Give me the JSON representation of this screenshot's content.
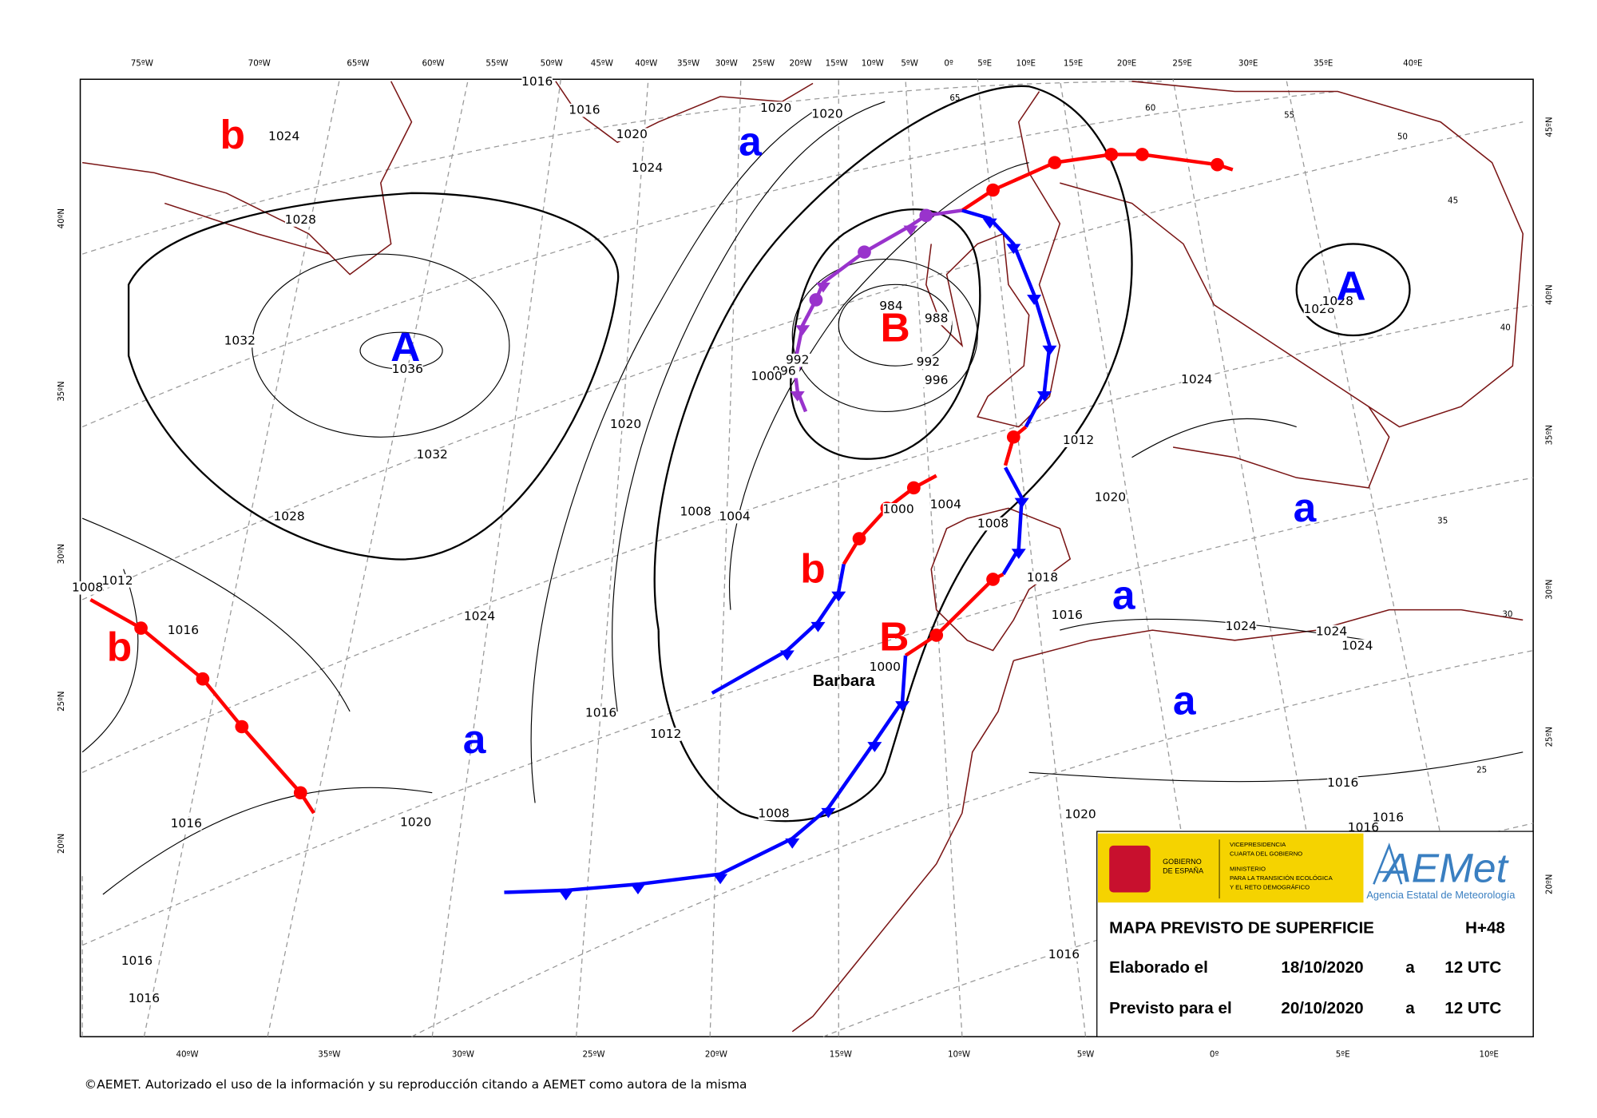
{
  "top_lon_labels": [
    "75ºW",
    "70ºW",
    "65ºW",
    "60ºW",
    "55ºW",
    "50ºW",
    "45ºW",
    "40ºW",
    "35ºW",
    "30ºW",
    "25ºW",
    "20ºW",
    "15ºW",
    "10ºW",
    "5ºW",
    "0º",
    "5ºE",
    "10ºE",
    "15ºE",
    "20ºE",
    "25ºE",
    "30ºE",
    "35ºE",
    "40ºE"
  ],
  "bottom_lon_labels": [
    "40ºW",
    "35ºW",
    "30ºW",
    "25ºW",
    "20ºW",
    "15ºW",
    "10ºW",
    "5ºW",
    "0º",
    "5ºE",
    "10ºE"
  ],
  "left_lat_labels": [
    "40ºN",
    "35ºN",
    "30ºN",
    "25ºN",
    "20ºN"
  ],
  "right_lat_labels": [
    "45ºN",
    "40ºN",
    "35ºN",
    "30ºN",
    "25ºN",
    "20ºN"
  ],
  "inner_lat_labels": [
    "65",
    "60",
    "55",
    "50",
    "45",
    "40",
    "35",
    "30",
    "25"
  ],
  "isobar_labels": [
    "1016",
    "1016",
    "1020",
    "1020",
    "1020",
    "1024",
    "1024",
    "1028",
    "1032",
    "1036",
    "1032",
    "1028",
    "1020",
    "1008",
    "1004",
    "1000",
    "1004",
    "1008",
    "984",
    "988",
    "992",
    "992",
    "996",
    "1000",
    "996",
    "1012",
    "1020",
    "1024",
    "1028",
    "1028",
    "1018",
    "1016",
    "1024",
    "1024",
    "1024",
    "1012",
    "1008",
    "1016",
    "1024",
    "1016",
    "1012",
    "1000",
    "1008",
    "1020",
    "1016",
    "1020",
    "1016",
    "1016",
    "1016",
    "1016",
    "1016",
    "1016"
  ],
  "systems": [
    {
      "label": "b",
      "color": "#ff0000"
    },
    {
      "label": "a",
      "color": "#0000ff"
    },
    {
      "label": "A",
      "color": "#0000ff"
    },
    {
      "label": "B",
      "color": "#ff0000"
    },
    {
      "label": "A",
      "color": "#0000ff"
    },
    {
      "label": "a",
      "color": "#0000ff"
    },
    {
      "label": "b",
      "color": "#ff0000"
    },
    {
      "label": "a",
      "color": "#0000ff"
    },
    {
      "label": "B",
      "color": "#ff0000"
    },
    {
      "label": "b",
      "color": "#ff0000"
    },
    {
      "label": "a",
      "color": "#0000ff"
    },
    {
      "label": "a",
      "color": "#0000ff"
    }
  ],
  "storm_name": "Barbara",
  "logos": {
    "government": [
      "GOBIERNO",
      "DE ESPAÑA"
    ],
    "vice": [
      "VICEPRESIDENCIA",
      "CUARTA DEL GOBIERNO"
    ],
    "ministry": [
      "MINISTERIO",
      "PARA LA TRANSICIÓN ECOLÓGICA",
      "Y EL RETO DEMOGRÁFICO"
    ],
    "aemet": "AEMet",
    "agency": "Agencia Estatal de Meteorología"
  },
  "info": {
    "title": "MAPA PREVISTO DE SUPERFICIE",
    "lead": "H+48",
    "rows": [
      [
        "Elaborado el",
        "18/10/2020",
        "a",
        "12 UTC"
      ],
      [
        "Previsto para el",
        "20/10/2020",
        "a",
        "12 UTC"
      ]
    ]
  },
  "footer": "©AEMET. Autorizado el uso de la información y su reproducción citando a AEMET como autora de la misma"
}
